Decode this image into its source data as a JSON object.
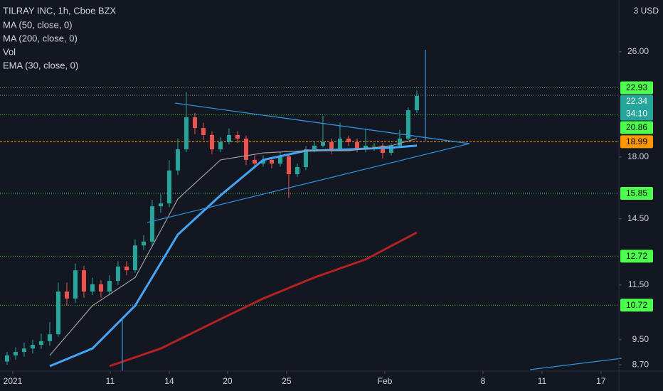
{
  "header": {
    "symbol": "TILRAY INC, 1h, Cboe BZX",
    "indicators": [
      "MA (50, close, 0)",
      "MA (200, close, 0)",
      "Vol",
      "EMA (30, close, 0)"
    ],
    "currency": "3 USD"
  },
  "chart_data": {
    "type": "candlestick",
    "log_scale": true,
    "ylim": [
      8.51,
      31.18
    ],
    "yticks": [
      {
        "value": 26,
        "label": "26.00"
      },
      {
        "value": 18,
        "label": "18.00"
      },
      {
        "value": 14.5,
        "label": "14.50"
      },
      {
        "value": 11.5,
        "label": "11.50"
      },
      {
        "value": 9.5,
        "label": "9.50"
      },
      {
        "value": 8.7,
        "label": "8.70"
      }
    ],
    "xlim": [
      -0.83,
      71.67
    ],
    "xticks": [
      {
        "value": 0.67,
        "label": "2021"
      },
      {
        "value": 12.08,
        "label": "11"
      },
      {
        "value": 19,
        "label": "14"
      },
      {
        "value": 25.83,
        "label": "20"
      },
      {
        "value": 32.75,
        "label": "25"
      },
      {
        "value": 44.25,
        "label": "Feb"
      },
      {
        "value": 55.75,
        "label": "8"
      },
      {
        "value": 62.67,
        "label": "11"
      },
      {
        "value": 69.58,
        "label": "17"
      }
    ],
    "up_color": "#26a69a",
    "down_color": "#ef5350",
    "open": [
      8.8,
      8.99,
      9.1,
      9.21,
      9.33,
      9.45,
      9.68,
      11.24,
      10.97,
      12.11,
      11.24,
      11.53,
      11.24,
      11.67,
      12.27,
      12.11,
      13.21,
      13.39,
      15.15,
      15.3,
      17.17,
      18.49,
      20.68,
      19.92,
      19.44,
      18.49,
      18.96,
      19.44,
      19.2,
      17.82,
      17.59,
      17.82,
      17.59,
      18.04,
      16.95,
      17.38,
      18.49,
      18.73,
      18.96,
      18.49,
      19.2,
      18.96,
      18.49,
      18.73,
      18.73,
      18.26,
      18.73,
      19.2,
      21.2
    ],
    "high": [
      9.1,
      9.25,
      9.4,
      9.5,
      9.7,
      10.1,
      11.6,
      11.6,
      12.4,
      12.3,
      11.8,
      11.7,
      11.9,
      12.5,
      12.5,
      13.5,
      13.7,
      15.5,
      15.8,
      17.8,
      19.2,
      22.6,
      21.0,
      20.3,
      19.7,
      19.3,
      19.9,
      19.7,
      19.4,
      18.1,
      18.1,
      18.0,
      18.3,
      18.2,
      17.6,
      18.7,
      19.0,
      20.8,
      19.2,
      20.3,
      19.4,
      19.2,
      19.9,
      18.9,
      18.9,
      18.9,
      19.8,
      21.4,
      22.7
    ],
    "low": [
      8.7,
      8.85,
      8.95,
      9.05,
      9.2,
      9.3,
      9.6,
      10.7,
      10.8,
      11.0,
      11.1,
      11.0,
      11.1,
      11.5,
      11.9,
      12.0,
      13.0,
      13.2,
      14.8,
      15.1,
      16.9,
      18.3,
      19.5,
      19.1,
      18.2,
      18.3,
      18.8,
      18.9,
      17.5,
      17.3,
      17.4,
      17.3,
      17.4,
      15.6,
      16.8,
      17.2,
      18.3,
      18.6,
      18.2,
      18.4,
      18.7,
      18.3,
      18.3,
      18.4,
      17.9,
      18.1,
      18.6,
      19.1,
      21.0
    ],
    "close": [
      8.99,
      9.1,
      9.21,
      9.33,
      9.45,
      9.68,
      11.24,
      10.97,
      12.11,
      11.24,
      11.53,
      11.24,
      11.67,
      12.27,
      12.11,
      13.21,
      13.39,
      15.15,
      15.3,
      17.17,
      18.49,
      20.68,
      19.92,
      19.44,
      18.49,
      18.96,
      19.44,
      19.2,
      17.82,
      17.59,
      17.82,
      17.59,
      18.04,
      16.95,
      17.38,
      18.49,
      18.73,
      18.96,
      18.49,
      19.2,
      18.96,
      18.49,
      18.73,
      18.73,
      18.26,
      18.73,
      19.2,
      21.2,
      22.29
    ],
    "lines": [
      {
        "color": "#b22222",
        "width": 3,
        "x": [
          12,
          18,
          24,
          30,
          36,
          42,
          48
        ],
        "values": [
          8.66,
          9.21,
          10.06,
          10.97,
          11.81,
          12.58,
          13.82
        ]
      },
      {
        "color": "#42a5f5",
        "width": 3,
        "x": [
          5,
          10,
          15,
          20,
          25,
          30,
          35,
          40,
          45,
          48
        ],
        "values": [
          8.66,
          9.21,
          10.7,
          13.72,
          15.74,
          17.82,
          18.4,
          18.49,
          18.6,
          18.73
        ]
      },
      {
        "color": "#9e9e9e",
        "width": 1.2,
        "x": [
          5,
          10,
          15,
          20,
          25,
          30,
          35,
          40,
          45,
          48
        ],
        "values": [
          8.99,
          10.7,
          11.81,
          15.54,
          17.82,
          18.26,
          18.4,
          18.4,
          18.73,
          19.2
        ]
      }
    ],
    "levels": [
      {
        "value": 22.93,
        "color": "#4cff4c",
        "line": "#2ecc2e"
      },
      {
        "value": 20.86,
        "color": "#4cff4c",
        "line": "#2ecc2e"
      },
      {
        "value": 18.99,
        "color": "#ff9800",
        "line": "#ff9800"
      },
      {
        "value": 15.85,
        "color": "#4cff4c",
        "line": "#2ecc2e"
      },
      {
        "value": 12.72,
        "color": "#4cff4c",
        "line": "#2ecc2e"
      },
      {
        "value": 10.72,
        "color": "#4cff4c",
        "line": "#2ecc2e"
      }
    ],
    "last_price": 22.34,
    "last_color": "#26a69a",
    "countdown": "34:10"
  }
}
